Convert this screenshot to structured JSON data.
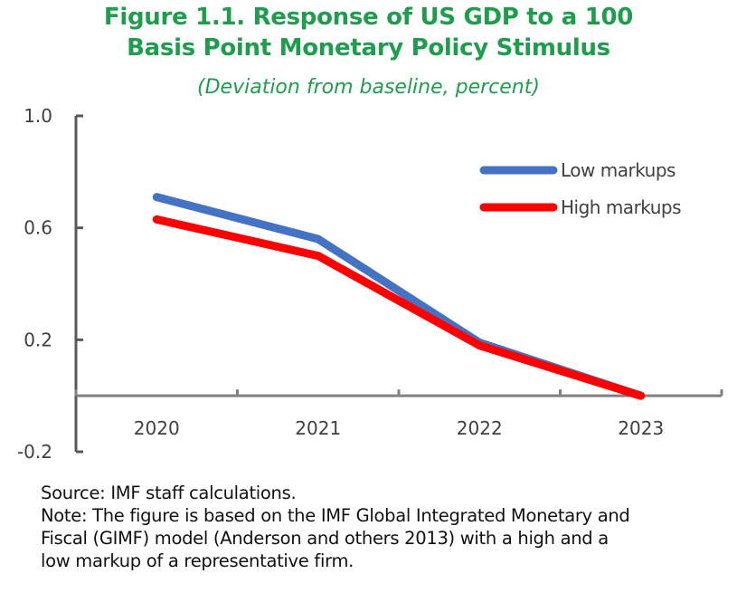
{
  "chart_data": {
    "type": "line",
    "title": "Figure 1.1. Response of US GDP to a 100 Basis Point Monetary Policy Stimulus",
    "title_lines": [
      "Figure 1.1. Response of US GDP to a 100",
      "Basis Point Monetary Policy Stimulus"
    ],
    "subtitle": "(Deviation from baseline, percent)",
    "categories": [
      "2020",
      "2021",
      "2022",
      "2023"
    ],
    "series": [
      {
        "name": "Low markups",
        "color": "#4472c4",
        "values": [
          0.71,
          0.56,
          0.19,
          0.0
        ]
      },
      {
        "name": "High markups",
        "color": "#ff0000",
        "values": [
          0.63,
          0.5,
          0.18,
          0.0
        ]
      }
    ],
    "ylim": [
      -0.2,
      1.0
    ],
    "yticks": [
      "1.0",
      "0.6",
      "0.2",
      "-0.2"
    ],
    "grid": false,
    "legend": "top-right"
  },
  "notes": {
    "source": "Source: IMF staff calculations.",
    "note_lines": [
      "Note: The figure is based on the IMF Global Integrated Monetary and",
      "Fiscal (GIMF) model (Anderson and others 2013) with a high and a",
      "low markup of a representative firm."
    ]
  }
}
